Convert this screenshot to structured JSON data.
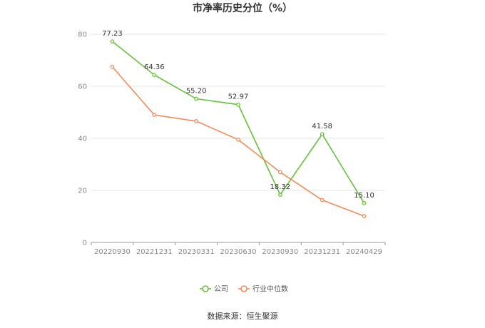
{
  "chart_data": {
    "type": "line",
    "title": "市净率历史分位（%）",
    "categories": [
      "20220930",
      "20221231",
      "20230331",
      "20230630",
      "20230930",
      "20231231",
      "20240429"
    ],
    "ylim": [
      0,
      80
    ],
    "yticks": [
      0,
      20,
      40,
      60,
      80
    ],
    "grid": true,
    "legend_position": "bottom",
    "series": [
      {
        "name": "公司",
        "color": "#66c23a",
        "values": [
          77.23,
          64.36,
          55.2,
          52.97,
          18.32,
          41.58,
          15.1
        ],
        "labels": [
          "77.23",
          "64.36",
          "55.20",
          "52.97",
          "18.32",
          "41.58",
          "15.10"
        ]
      },
      {
        "name": "行业中位数",
        "color": "#f08c5a",
        "values": [
          67.5,
          49.0,
          46.6,
          39.5,
          27.0,
          16.3,
          10.1
        ]
      }
    ],
    "source": "数据来源：恒生聚源"
  }
}
